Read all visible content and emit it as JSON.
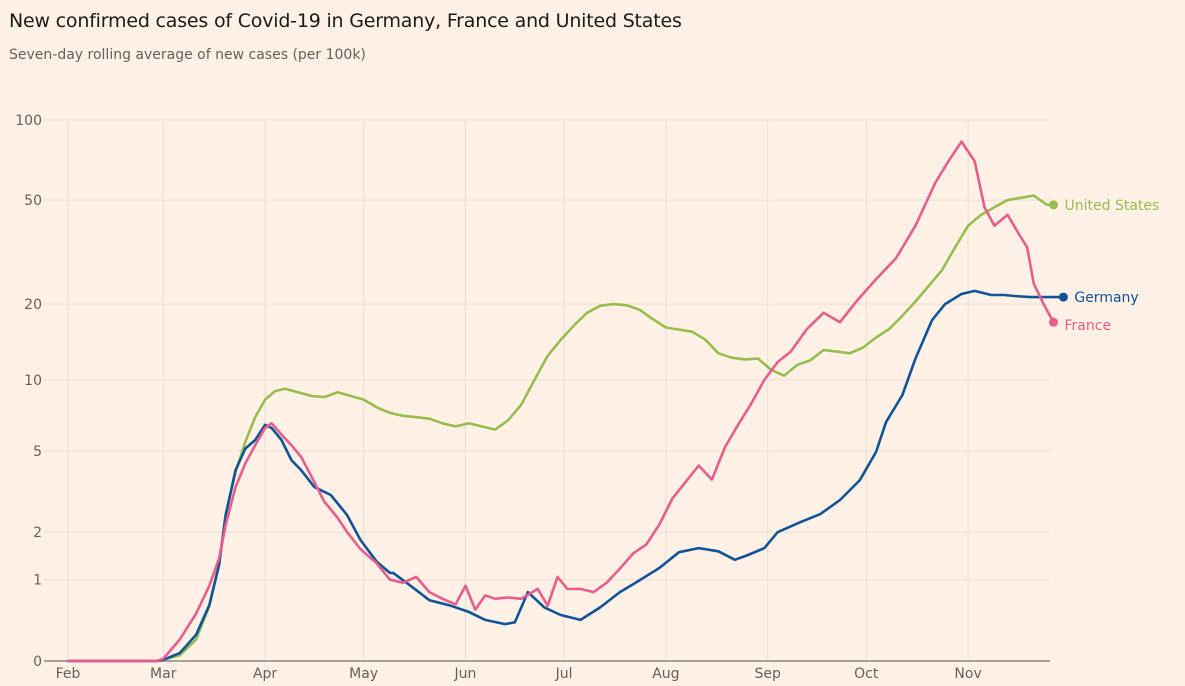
{
  "title": "New confirmed cases of Covid-19 in Germany, France and United States",
  "subtitle": "Seven-day rolling average of new cases (per 100k)",
  "chart_data": {
    "type": "line",
    "title": "New confirmed cases of Covid-19 in Germany, France and United States",
    "subtitle": "Seven-day rolling average of new cases (per 100k)",
    "xlabel": "",
    "ylabel": "",
    "yscale": "log(1+x)",
    "ylim": [
      0,
      100
    ],
    "yticks": [
      0,
      1,
      2,
      5,
      10,
      20,
      50,
      100
    ],
    "ytick_labels": [
      "0",
      "1",
      "2",
      "5",
      "10",
      "20",
      "50",
      "100"
    ],
    "x_unit": "days since Feb 1",
    "xlim": [
      0,
      300
    ],
    "xticks": [
      0,
      29,
      60,
      90,
      121,
      151,
      182,
      213,
      243,
      274
    ],
    "xtick_labels": [
      "Feb",
      "Mar",
      "Apr",
      "May",
      "Jun",
      "Jul",
      "Aug",
      "Sep",
      "Oct",
      "Nov"
    ],
    "grid": true,
    "legend": "end-of-line labels (right)",
    "series": [
      {
        "name": "Germany",
        "color": "#0f5499",
        "x": [
          0,
          27,
          29,
          34,
          39,
          43,
          46,
          48,
          51,
          54,
          57,
          60,
          62,
          65,
          68,
          71,
          75,
          80,
          85,
          89,
          94,
          98,
          99,
          104,
          110,
          116,
          122,
          127,
          133,
          136,
          140,
          145,
          150,
          156,
          162,
          168,
          174,
          180,
          186,
          192,
          198,
          203,
          207,
          212,
          216,
          223,
          229,
          235,
          241,
          246,
          249,
          254,
          258,
          263,
          267,
          272,
          276,
          281,
          285,
          288,
          293,
          297,
          303
        ],
        "values": [
          0,
          0,
          0.01,
          0.07,
          0.25,
          0.61,
          1.27,
          2.47,
          4.09,
          5.13,
          5.59,
          6.5,
          6.3,
          5.59,
          4.55,
          4.09,
          3.41,
          3.12,
          2.47,
          1.81,
          1.33,
          1.12,
          1.12,
          0.91,
          0.68,
          0.61,
          0.52,
          0.42,
          0.37,
          0.39,
          0.8,
          0.58,
          0.48,
          0.42,
          0.58,
          0.8,
          0.99,
          1.21,
          1.53,
          1.62,
          1.55,
          1.37,
          1.47,
          1.62,
          2.0,
          2.27,
          2.5,
          2.95,
          3.67,
          4.95,
          6.67,
          8.67,
          12.2,
          17.3,
          20.0,
          21.9,
          22.5,
          21.7,
          21.7,
          21.5,
          21.3,
          21.3,
          21.3
        ]
      },
      {
        "name": "France",
        "color": "#e95d8c",
        "x": [
          0,
          27,
          29,
          34,
          39,
          43,
          46,
          48,
          51,
          54,
          57,
          60,
          62,
          65,
          68,
          71,
          75,
          78,
          82,
          85,
          89,
          94,
          98,
          102,
          106,
          110,
          114,
          118,
          121,
          124,
          127,
          130,
          134,
          138,
          143,
          146,
          149,
          152,
          156,
          160,
          164,
          168,
          172,
          176,
          180,
          184,
          188,
          192,
          196,
          200,
          204,
          208,
          212,
          216,
          220,
          225,
          230,
          235,
          240,
          246,
          252,
          258,
          264,
          268,
          272,
          276,
          279,
          282,
          286,
          289,
          292,
          294,
          297,
          300
        ],
        "values": [
          0,
          0,
          0.02,
          0.2,
          0.5,
          0.9,
          1.4,
          2.2,
          3.4,
          4.4,
          5.3,
          6.3,
          6.6,
          5.9,
          5.3,
          4.7,
          3.6,
          2.9,
          2.4,
          2.0,
          1.6,
          1.3,
          1.0,
          0.95,
          1.05,
          0.8,
          0.7,
          0.62,
          0.9,
          0.55,
          0.75,
          0.7,
          0.72,
          0.7,
          0.85,
          0.6,
          1.05,
          0.85,
          0.85,
          0.8,
          0.95,
          1.2,
          1.5,
          1.7,
          2.2,
          3.0,
          3.6,
          4.3,
          3.7,
          5.2,
          6.5,
          8.0,
          10.0,
          11.8,
          13.0,
          16.0,
          18.5,
          17.0,
          20.5,
          25.0,
          30.0,
          40.0,
          58.0,
          70.0,
          83.0,
          70.0,
          47.0,
          40.0,
          44.0,
          38.0,
          33.0,
          24.0,
          20.0,
          17.0
        ]
      },
      {
        "name": "United States",
        "color": "#96be4e",
        "x": [
          0,
          27,
          29,
          34,
          39,
          43,
          46,
          48,
          51,
          54,
          57,
          60,
          63,
          66,
          70,
          74,
          78,
          82,
          86,
          90,
          94,
          98,
          102,
          106,
          110,
          114,
          118,
          122,
          126,
          130,
          134,
          138,
          142,
          146,
          150,
          154,
          158,
          162,
          166,
          170,
          174,
          178,
          182,
          186,
          190,
          194,
          198,
          202,
          206,
          210,
          214,
          218,
          222,
          226,
          230,
          234,
          238,
          242,
          246,
          250,
          254,
          258,
          262,
          266,
          270,
          274,
          278,
          282,
          286,
          290,
          294,
          298,
          300
        ],
        "values": [
          0,
          0,
          0.01,
          0.05,
          0.2,
          0.6,
          1.3,
          2.5,
          4.0,
          5.5,
          7.0,
          8.3,
          9.0,
          9.2,
          8.9,
          8.6,
          8.5,
          8.9,
          8.6,
          8.3,
          7.7,
          7.3,
          7.1,
          7.0,
          6.9,
          6.6,
          6.4,
          6.6,
          6.4,
          6.2,
          6.8,
          7.9,
          10.0,
          12.5,
          14.5,
          16.5,
          18.5,
          19.7,
          20.0,
          19.8,
          19.0,
          17.5,
          16.2,
          15.9,
          15.6,
          14.5,
          12.8,
          12.3,
          12.1,
          12.2,
          11.0,
          10.4,
          11.5,
          12.0,
          13.2,
          13.0,
          12.8,
          13.5,
          14.8,
          16.0,
          18.0,
          20.5,
          23.5,
          27.0,
          33.0,
          40.0,
          44.0,
          47.0,
          50.0,
          51.0,
          52.0,
          48.0,
          48.0
        ]
      }
    ]
  }
}
